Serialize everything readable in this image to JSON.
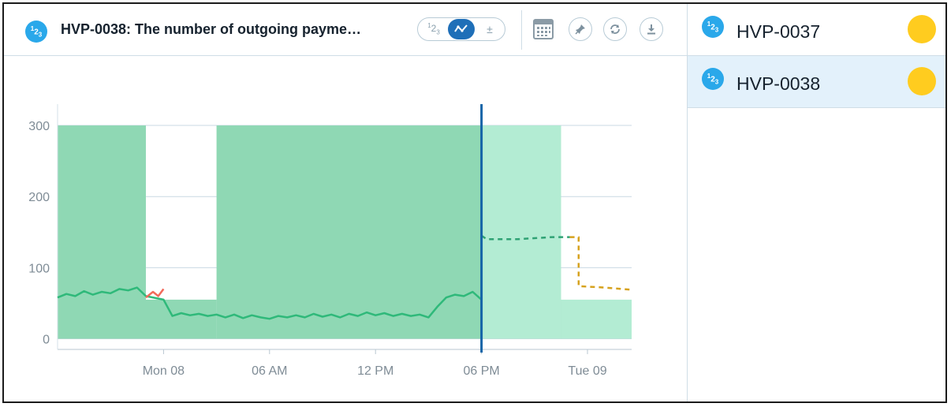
{
  "header": {
    "title": "HVP-0038: The number of outgoing payme…",
    "badge_text": "123",
    "view_options": [
      "123",
      "line",
      "±"
    ],
    "active_view": "line",
    "icons": [
      "calendar-icon",
      "pin-icon",
      "refresh-icon",
      "download-icon"
    ]
  },
  "sidebar": {
    "items": [
      {
        "label": "HVP-0037",
        "status_color": "#ffcc1f",
        "selected": false
      },
      {
        "label": "HVP-0038",
        "status_color": "#ffcc1f",
        "selected": true
      }
    ]
  },
  "colors": {
    "band_past": "#8fd8b4",
    "band_future": "#b3ecd3",
    "actual_line": "#2fb97a",
    "anomaly_line": "#f26b5b",
    "forecast_line": "#2fa274",
    "forecast_alt_line": "#d6a21e",
    "now_line": "#1565a8",
    "grid": "#c9d9e3"
  },
  "chart_data": {
    "type": "line",
    "x_ticks": [
      "Mon 08",
      "06 AM",
      "12 PM",
      "06 PM",
      "Tue 09"
    ],
    "y_ticks": [
      0,
      100,
      200,
      300
    ],
    "ylim": [
      -15,
      330
    ],
    "xlim_hours": [
      -6,
      26.5
    ],
    "now_hour": 18,
    "band": [
      {
        "from": -6,
        "to": -1,
        "low": 0,
        "high": 300
      },
      {
        "from": -1,
        "to": 3,
        "low": 0,
        "high": 55
      },
      {
        "from": 3,
        "to": 22.5,
        "low": 0,
        "high": 300
      },
      {
        "from": 22.5,
        "to": 26.5,
        "low": 0,
        "high": 55
      }
    ],
    "series": [
      {
        "values": [
          [
            -6,
            58
          ],
          [
            -5.5,
            63
          ],
          [
            -5,
            60
          ],
          [
            -4.5,
            67
          ],
          [
            -4,
            62
          ],
          [
            -3.5,
            66
          ],
          [
            -3,
            64
          ],
          [
            -2.5,
            70
          ],
          [
            -2,
            68
          ],
          [
            -1.5,
            72
          ],
          [
            -1,
            60
          ],
          [
            0,
            55
          ],
          [
            0.5,
            32
          ],
          [
            1,
            36
          ],
          [
            1.5,
            33
          ],
          [
            2,
            35
          ],
          [
            2.5,
            32
          ],
          [
            3,
            34
          ],
          [
            3.5,
            30
          ],
          [
            4,
            34
          ],
          [
            4.5,
            29
          ],
          [
            5,
            33
          ],
          [
            5.5,
            30
          ],
          [
            6,
            28
          ],
          [
            6.5,
            32
          ],
          [
            7,
            30
          ],
          [
            7.5,
            33
          ],
          [
            8,
            30
          ],
          [
            8.5,
            35
          ],
          [
            9,
            31
          ],
          [
            9.5,
            34
          ],
          [
            10,
            30
          ],
          [
            10.5,
            35
          ],
          [
            11,
            32
          ],
          [
            11.5,
            37
          ],
          [
            12,
            33
          ],
          [
            12.5,
            36
          ],
          [
            13,
            32
          ],
          [
            13.5,
            35
          ],
          [
            14,
            32
          ],
          [
            14.5,
            34
          ],
          [
            15,
            30
          ],
          [
            15.5,
            45
          ],
          [
            16,
            58
          ],
          [
            16.5,
            62
          ],
          [
            17,
            60
          ],
          [
            17.5,
            66
          ],
          [
            18,
            55
          ]
        ]
      },
      {
        "values": [
          [
            -1,
            58
          ],
          [
            -0.6,
            66
          ],
          [
            -0.3,
            60
          ],
          [
            0,
            70
          ]
        ]
      },
      {
        "values": [
          [
            18,
            145
          ],
          [
            18.3,
            140
          ],
          [
            20,
            140
          ],
          [
            22,
            143
          ],
          [
            23,
            143
          ]
        ]
      },
      {
        "values": [
          [
            23,
            143
          ],
          [
            23.5,
            143
          ],
          [
            23.5,
            74
          ],
          [
            25,
            72
          ],
          [
            26.5,
            69
          ]
        ]
      }
    ]
  }
}
